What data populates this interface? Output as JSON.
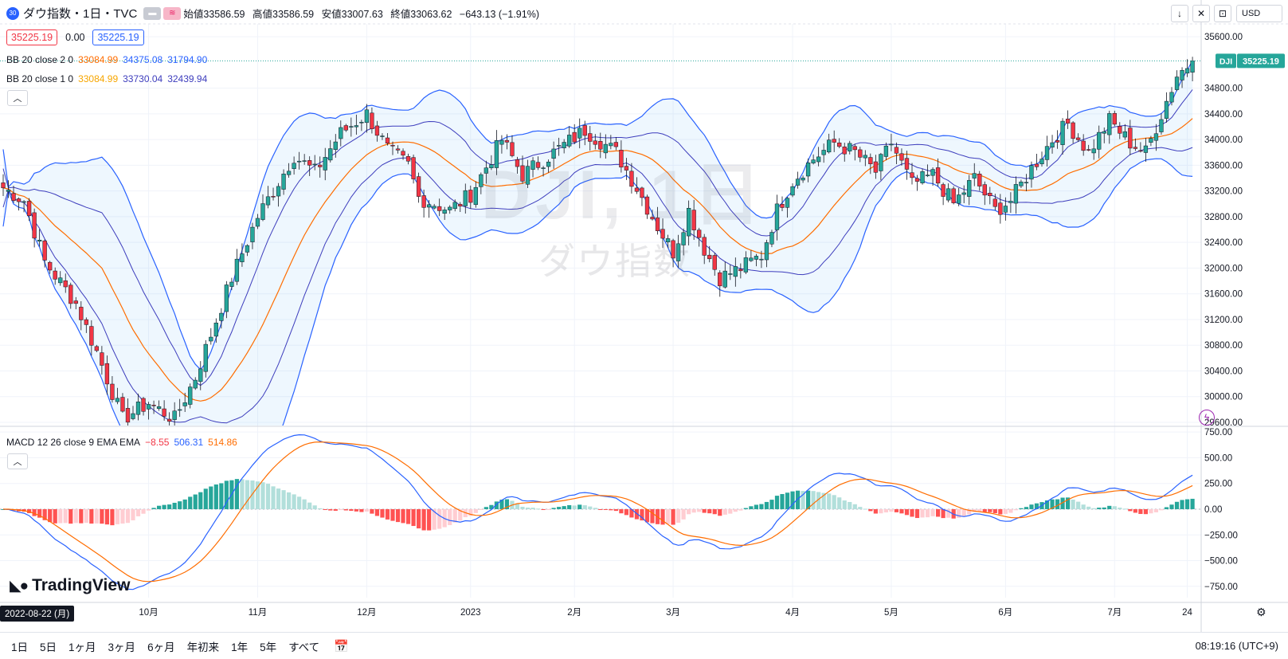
{
  "symbol": {
    "badge": "30",
    "title": "ダウ指数・1日・TVC",
    "ohlc": [
      {
        "label": "始値",
        "value": "33586.59"
      },
      {
        "label": "高値",
        "value": "33586.59"
      },
      {
        "label": "安値",
        "value": "33007.63"
      },
      {
        "label": "終値",
        "value": "33063.62"
      }
    ],
    "change": "−643.13 (−1.91%)"
  },
  "price_row": {
    "bid": "35225.19",
    "spread": "0.00",
    "ask": "35225.19"
  },
  "indicators": {
    "bb2": {
      "name": "BB 20 close 2 0",
      "basis": "33084.99",
      "upper": "34375.08",
      "lower": "31794.90"
    },
    "bb1": {
      "name": "BB 20 close 1 0",
      "basis": "33084.99",
      "upper": "33730.04",
      "lower": "32439.94"
    },
    "macd": {
      "name": "MACD 12 26 close 9 EMA EMA",
      "hist": "−8.55",
      "macd": "506.31",
      "signal": "514.86"
    }
  },
  "watermark": {
    "main": "DJI, 1日",
    "sub": "ダウ指数"
  },
  "currency": "USD",
  "last_price_label": {
    "ticker": "DJI",
    "price": "35225.19"
  },
  "branding": "TradingView",
  "date_badge": "2022-08-22 (月)",
  "ranges": [
    "1日",
    "5日",
    "1ヶ月",
    "3ヶ月",
    "6ヶ月",
    "年初来",
    "1年",
    "5年",
    "すべて"
  ],
  "clock": "08:19:16 (UTC+9)",
  "colors": {
    "up": "#26a69a",
    "down": "#f23645",
    "bb_basis": "#ff6d00",
    "bb_band": "#2962ff",
    "macd_line": "#2962ff",
    "signal_line": "#ff6d00"
  },
  "chart_data": {
    "type": "candlestick",
    "price_axis_ticks": [
      35600,
      34800,
      34400,
      34000,
      33600,
      33200,
      32800,
      32400,
      32000,
      31600,
      31200,
      30800,
      30400,
      30000,
      29600
    ],
    "price_ylim": [
      29550,
      35800
    ],
    "macd_axis_ticks": [
      "750.00",
      "500.00",
      "250.00",
      "0.00",
      "−250.00",
      "−500.00",
      "−750.00"
    ],
    "macd_ylim": [
      -860,
      790
    ],
    "x_ticks": [
      {
        "label": "10月",
        "index": 28
      },
      {
        "label": "11月",
        "index": 49
      },
      {
        "label": "12月",
        "index": 70
      },
      {
        "label": "2023",
        "index": 90
      },
      {
        "label": "2月",
        "index": 110
      },
      {
        "label": "3月",
        "index": 129
      },
      {
        "label": "4月",
        "index": 152
      },
      {
        "label": "5月",
        "index": 171
      },
      {
        "label": "6月",
        "index": 193
      },
      {
        "label": "7月",
        "index": 214
      },
      {
        "label": "24",
        "index": 228
      }
    ],
    "ohlc_keypoints": [
      {
        "index": 0,
        "close": 33250
      },
      {
        "index": 4,
        "close": 33050
      },
      {
        "index": 8,
        "close": 32100
      },
      {
        "index": 14,
        "close": 31450
      },
      {
        "index": 18,
        "close": 30700
      },
      {
        "index": 23,
        "close": 29650
      },
      {
        "index": 28,
        "close": 29900
      },
      {
        "index": 33,
        "close": 29650
      },
      {
        "index": 37,
        "close": 30300
      },
      {
        "index": 44,
        "close": 31850
      },
      {
        "index": 49,
        "close": 32800
      },
      {
        "index": 56,
        "close": 33750
      },
      {
        "index": 60,
        "close": 33500
      },
      {
        "index": 65,
        "close": 34100
      },
      {
        "index": 70,
        "close": 34400
      },
      {
        "index": 74,
        "close": 33850
      },
      {
        "index": 78,
        "close": 33600
      },
      {
        "index": 80,
        "close": 33100
      },
      {
        "index": 86,
        "close": 32900
      },
      {
        "index": 90,
        "close": 33150
      },
      {
        "index": 96,
        "close": 34000
      },
      {
        "index": 100,
        "close": 33450
      },
      {
        "index": 106,
        "close": 33800
      },
      {
        "index": 112,
        "close": 34150
      },
      {
        "index": 118,
        "close": 33800
      },
      {
        "index": 122,
        "close": 33250
      },
      {
        "index": 126,
        "close": 32650
      },
      {
        "index": 129,
        "close": 32250
      },
      {
        "index": 132,
        "close": 32900
      },
      {
        "index": 135,
        "close": 32300
      },
      {
        "index": 138,
        "close": 31850
      },
      {
        "index": 142,
        "close": 32000
      },
      {
        "index": 146,
        "close": 32200
      },
      {
        "index": 149,
        "close": 32900
      },
      {
        "index": 152,
        "close": 33350
      },
      {
        "index": 156,
        "close": 33700
      },
      {
        "index": 160,
        "close": 33950
      },
      {
        "index": 164,
        "close": 33800
      },
      {
        "index": 168,
        "close": 33500
      },
      {
        "index": 171,
        "close": 33950
      },
      {
        "index": 175,
        "close": 33300
      },
      {
        "index": 179,
        "close": 33450
      },
      {
        "index": 183,
        "close": 33000
      },
      {
        "index": 187,
        "close": 33400
      },
      {
        "index": 191,
        "close": 32900
      },
      {
        "index": 194,
        "close": 33050
      },
      {
        "index": 198,
        "close": 33550
      },
      {
        "index": 202,
        "close": 34000
      },
      {
        "index": 205,
        "close": 34250
      },
      {
        "index": 209,
        "close": 33800
      },
      {
        "index": 213,
        "close": 34300
      },
      {
        "index": 217,
        "close": 33950
      },
      {
        "index": 220,
        "close": 33800
      },
      {
        "index": 223,
        "close": 34400
      },
      {
        "index": 226,
        "close": 35000
      },
      {
        "index": 229,
        "close": 35225.19
      }
    ],
    "last_price": 35225.19
  }
}
